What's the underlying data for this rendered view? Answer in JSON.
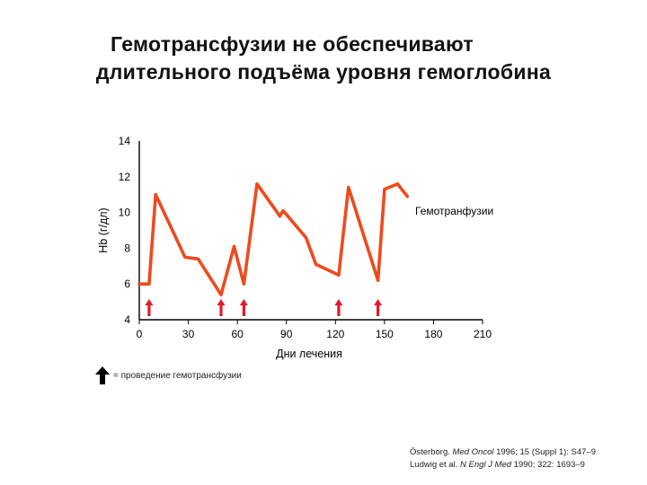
{
  "title": {
    "line1": "Гемотрансфузии не обеспечивают",
    "line2": "длительного подъёма уровня гемоглобина"
  },
  "legend_text": "= проведение гемотрансфузии",
  "references": [
    {
      "author": "Österborg.",
      "journal": "Med Oncol",
      "rest": "1996; 15 (Suppl 1): S47–9"
    },
    {
      "author": "Ludwig et al.",
      "journal": "N Engl J Med",
      "rest": "1990; 322: 1693–9"
    }
  ],
  "colors": {
    "series": "#ee4a1e",
    "arrow": "#e8162a",
    "axis": "#000000"
  },
  "chart_data": {
    "type": "line",
    "xlabel": "Дни лечения",
    "ylabel": "Hb (г/дл)",
    "xlim": [
      0,
      210
    ],
    "ylim": [
      4,
      14
    ],
    "xticks": [
      0,
      30,
      60,
      90,
      120,
      150,
      180,
      210
    ],
    "yticks": [
      4,
      6,
      8,
      10,
      12,
      14
    ],
    "grid": false,
    "series": [
      {
        "name": "Гемотранфузии",
        "x": [
          0,
          6,
          10,
          28,
          36,
          50,
          58,
          64,
          72,
          86,
          88,
          102,
          108,
          122,
          128,
          146,
          150,
          158,
          164
        ],
        "y": [
          6.0,
          6.0,
          11.0,
          7.5,
          7.4,
          5.4,
          8.1,
          6.0,
          11.6,
          9.8,
          10.1,
          8.6,
          7.1,
          6.5,
          11.4,
          6.2,
          11.3,
          11.6,
          10.9
        ]
      }
    ],
    "transfusion_days": [
      6,
      50,
      64,
      122,
      146
    ]
  }
}
